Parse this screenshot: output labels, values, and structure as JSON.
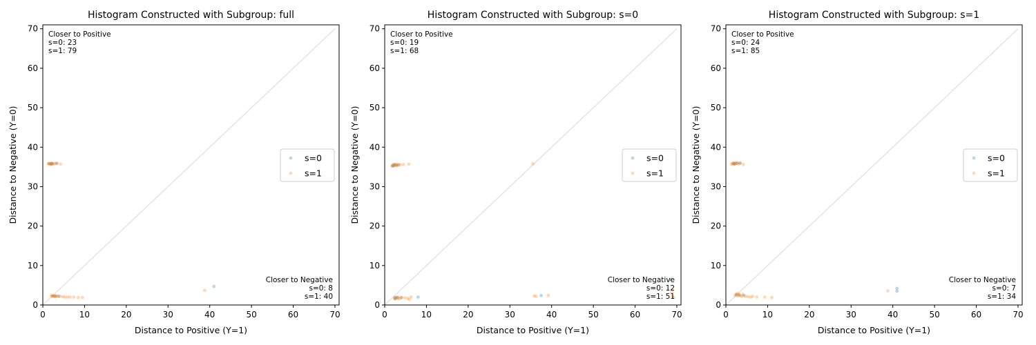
{
  "colors": {
    "s0": "#1f77b4",
    "s1": "#ff7f0e",
    "diag": "#c8c8c8",
    "legend_border": "#cccccc"
  },
  "legend_labels": [
    "s=0",
    "s=1"
  ],
  "chart_data": [
    {
      "type": "scatter",
      "title": "Histogram Constructed with Subgroup: full",
      "xlabel": "Distance to Positive (Y=1)",
      "ylabel": "Distance to Negative (Y=0)",
      "xlim": [
        0,
        71
      ],
      "ylim": [
        0,
        71
      ],
      "xticks": [
        "0",
        "10",
        "20",
        "30",
        "40",
        "50",
        "60",
        "70"
      ],
      "yticks": [
        "0",
        "10",
        "20",
        "30",
        "40",
        "50",
        "60",
        "70"
      ],
      "grid": false,
      "legend_position": "center-right",
      "annotation_pos": {
        "title": "Closer to Positive",
        "lines": [
          "s=0: 23",
          "s=1: 79"
        ]
      },
      "annotation_neg": {
        "title": "Closer to Negative",
        "lines": [
          "s=0: 8",
          "s=1: 40"
        ]
      },
      "series": [
        {
          "name": "s=0",
          "points": [
            [
              1.5,
              35.8
            ],
            [
              2.0,
              35.7
            ],
            [
              2.3,
              35.8
            ],
            [
              3.3,
              35.9
            ],
            [
              2.5,
              2.3
            ],
            [
              3.0,
              2.3
            ],
            [
              3.8,
              2.2
            ],
            [
              41,
              4.7
            ],
            [
              2.0,
              35.9
            ]
          ]
        },
        {
          "name": "s=1",
          "points": [
            [
              1.3,
              35.8
            ],
            [
              1.7,
              35.6
            ],
            [
              2.0,
              35.8
            ],
            [
              2.2,
              35.9
            ],
            [
              2.6,
              35.9
            ],
            [
              3.0,
              35.8
            ],
            [
              3.4,
              35.9
            ],
            [
              4.2,
              35.7
            ],
            [
              1.5,
              35.9
            ],
            [
              2.3,
              35.6
            ],
            [
              2.0,
              2.3
            ],
            [
              2.3,
              2.2
            ],
            [
              2.6,
              2.3
            ],
            [
              2.9,
              2.2
            ],
            [
              3.2,
              2.3
            ],
            [
              3.6,
              2.2
            ],
            [
              4.2,
              2.2
            ],
            [
              4.8,
              2.1
            ],
            [
              5.3,
              2.0
            ],
            [
              5.9,
              2.0
            ],
            [
              6.5,
              2.0
            ],
            [
              7.4,
              2.0
            ],
            [
              8.5,
              1.9
            ],
            [
              9.5,
              1.9
            ],
            [
              38.8,
              3.7
            ],
            [
              2.2,
              2.4
            ],
            [
              3.0,
              2.1
            ]
          ]
        }
      ]
    },
    {
      "type": "scatter",
      "title": "Histogram Constructed with Subgroup: s=0",
      "xlabel": "Distance to Positive (Y=1)",
      "ylabel": "Distance to Negative (Y=0)",
      "xlim": [
        0,
        71
      ],
      "ylim": [
        0,
        71
      ],
      "xticks": [
        "0",
        "10",
        "20",
        "30",
        "40",
        "50",
        "60",
        "70"
      ],
      "yticks": [
        "0",
        "10",
        "20",
        "30",
        "40",
        "50",
        "60",
        "70"
      ],
      "grid": false,
      "legend_position": "center-right",
      "annotation_pos": {
        "title": "Closer to Positive",
        "lines": [
          "s=0: 19",
          "s=1: 68"
        ]
      },
      "annotation_neg": {
        "title": "Closer to Negative",
        "lines": [
          "s=0: 12",
          "s=1: 51"
        ]
      },
      "series": [
        {
          "name": "s=0",
          "points": [
            [
              1.8,
              35.3
            ],
            [
              2.3,
              35.6
            ],
            [
              2.8,
              35.4
            ],
            [
              3.3,
              35.5
            ],
            [
              2.4,
              1.8
            ],
            [
              3.0,
              1.9
            ],
            [
              4.0,
              1.9
            ],
            [
              8.0,
              2.0
            ],
            [
              37.5,
              2.4
            ],
            [
              68.5,
              6.5
            ],
            [
              2.1,
              35.2
            ],
            [
              2.6,
              1.6
            ]
          ]
        },
        {
          "name": "s=1",
          "points": [
            [
              1.8,
              35.2
            ],
            [
              2.0,
              35.6
            ],
            [
              2.3,
              35.4
            ],
            [
              2.6,
              35.5
            ],
            [
              2.9,
              35.3
            ],
            [
              3.3,
              35.6
            ],
            [
              3.8,
              35.5
            ],
            [
              4.5,
              35.6
            ],
            [
              5.8,
              35.7
            ],
            [
              2.2,
              35.4
            ],
            [
              2.8,
              35.7
            ],
            [
              2.4,
              1.5
            ],
            [
              2.8,
              1.9
            ],
            [
              3.1,
              1.7
            ],
            [
              3.5,
              1.6
            ],
            [
              4.0,
              1.8
            ],
            [
              4.8,
              1.8
            ],
            [
              5.5,
              1.7
            ],
            [
              5.9,
              1.4
            ],
            [
              6.3,
              2.0
            ],
            [
              35.5,
              35.8
            ],
            [
              35.8,
              2.3
            ],
            [
              36.3,
              2.2
            ],
            [
              39.2,
              2.4
            ],
            [
              68.8,
              3.3
            ],
            [
              69.0,
              2.2
            ],
            [
              69.2,
              1.9
            ],
            [
              2.5,
              1.9
            ],
            [
              3.3,
              2.0
            ]
          ]
        }
      ]
    },
    {
      "type": "scatter",
      "title": "Histogram Constructed with Subgroup: s=1",
      "xlabel": "Distance to Positive (Y=1)",
      "ylabel": "Distance to Negative (Y=0)",
      "xlim": [
        0,
        71
      ],
      "ylim": [
        0,
        71
      ],
      "xticks": [
        "0",
        "10",
        "20",
        "30",
        "40",
        "50",
        "60",
        "70"
      ],
      "yticks": [
        "0",
        "10",
        "20",
        "30",
        "40",
        "50",
        "60",
        "70"
      ],
      "grid": false,
      "legend_position": "center-right",
      "annotation_pos": {
        "title": "Closer to Positive",
        "lines": [
          "s=0: 24",
          "s=1: 85"
        ]
      },
      "annotation_neg": {
        "title": "Closer to Negative",
        "lines": [
          "s=0: 7",
          "s=1: 34"
        ]
      },
      "series": [
        {
          "name": "s=0",
          "points": [
            [
              1.8,
              35.9
            ],
            [
              2.2,
              35.8
            ],
            [
              2.8,
              36.0
            ],
            [
              3.4,
              35.9
            ],
            [
              2.5,
              2.6
            ],
            [
              3.2,
              2.5
            ],
            [
              41,
              4.2
            ],
            [
              41,
              3.5
            ],
            [
              4.3,
              2.4
            ],
            [
              2.0,
              35.7
            ]
          ]
        },
        {
          "name": "s=1",
          "points": [
            [
              1.3,
              35.7
            ],
            [
              1.6,
              35.9
            ],
            [
              1.9,
              36.0
            ],
            [
              2.2,
              35.8
            ],
            [
              2.6,
              35.9
            ],
            [
              3.0,
              35.7
            ],
            [
              3.5,
              36.0
            ],
            [
              4.2,
              35.6
            ],
            [
              1.7,
              35.6
            ],
            [
              2.4,
              36.1
            ],
            [
              2.2,
              2.4
            ],
            [
              2.5,
              2.8
            ],
            [
              2.8,
              2.3
            ],
            [
              3.1,
              2.6
            ],
            [
              3.5,
              2.4
            ],
            [
              4.1,
              2.7
            ],
            [
              4.7,
              2.2
            ],
            [
              5.3,
              2.1
            ],
            [
              5.9,
              2.0
            ],
            [
              6.4,
              2.2
            ],
            [
              7.4,
              2.0
            ],
            [
              9.3,
              2.0
            ],
            [
              11.0,
              1.9
            ],
            [
              38.8,
              3.6
            ],
            [
              2.9,
              2.9
            ],
            [
              3.8,
              2.2
            ]
          ]
        }
      ]
    }
  ]
}
